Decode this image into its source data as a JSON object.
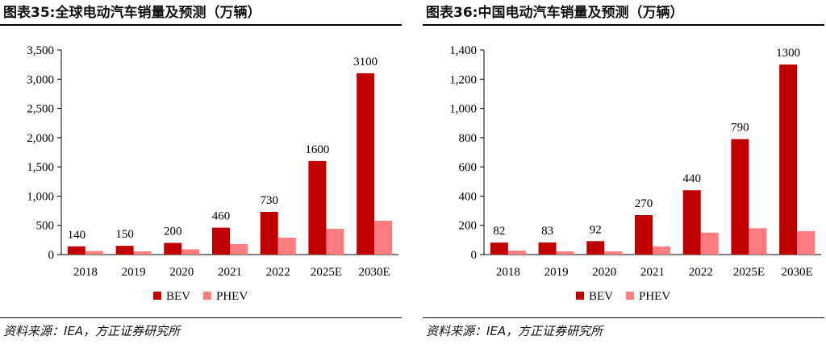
{
  "colors": {
    "bev": "#c00000",
    "phev": "#ff7c80",
    "axis": "#000000"
  },
  "chart_data": [
    {
      "type": "bar",
      "title": "图表35:全球电动汽车销量及预测（万辆）",
      "categories": [
        "2018",
        "2019",
        "2020",
        "2021",
        "2022",
        "2025E",
        "2030E"
      ],
      "series": [
        {
          "name": "BEV",
          "values": [
            140,
            150,
            200,
            460,
            730,
            1600,
            3100
          ]
        },
        {
          "name": "PHEV",
          "values": [
            60,
            55,
            90,
            180,
            290,
            440,
            580
          ]
        }
      ],
      "data_labels": [
        "140",
        "150",
        "200",
        "460",
        "730",
        "1600",
        "3100"
      ],
      "ylim": [
        0,
        3500
      ],
      "yticks": [
        0,
        500,
        1000,
        1500,
        2000,
        2500,
        3000,
        3500
      ],
      "ytick_labels": [
        "0",
        "500",
        "1,000",
        "1,500",
        "2,000",
        "2,500",
        "3,000",
        "3,500"
      ],
      "legend": "bottom-center",
      "source": "资料来源：IEA，方正证券研究所"
    },
    {
      "type": "bar",
      "title": "图表36:中国电动汽车销量及预测（万辆）",
      "categories": [
        "2018",
        "2019",
        "2020",
        "2021",
        "2022",
        "2025E",
        "2030E"
      ],
      "series": [
        {
          "name": "BEV",
          "values": [
            82,
            83,
            92,
            270,
            440,
            790,
            1300
          ]
        },
        {
          "name": "PHEV",
          "values": [
            27,
            22,
            22,
            55,
            150,
            180,
            160
          ]
        }
      ],
      "data_labels": [
        "82",
        "83",
        "92",
        "270",
        "440",
        "790",
        "1300"
      ],
      "ylim": [
        0,
        1400
      ],
      "yticks": [
        0,
        200,
        400,
        600,
        800,
        1000,
        1200,
        1400
      ],
      "ytick_labels": [
        "0",
        "200",
        "400",
        "600",
        "800",
        "1,000",
        "1,200",
        "1,400"
      ],
      "legend": "bottom-center",
      "source": "资料来源：IEA，方正证券研究所"
    }
  ]
}
